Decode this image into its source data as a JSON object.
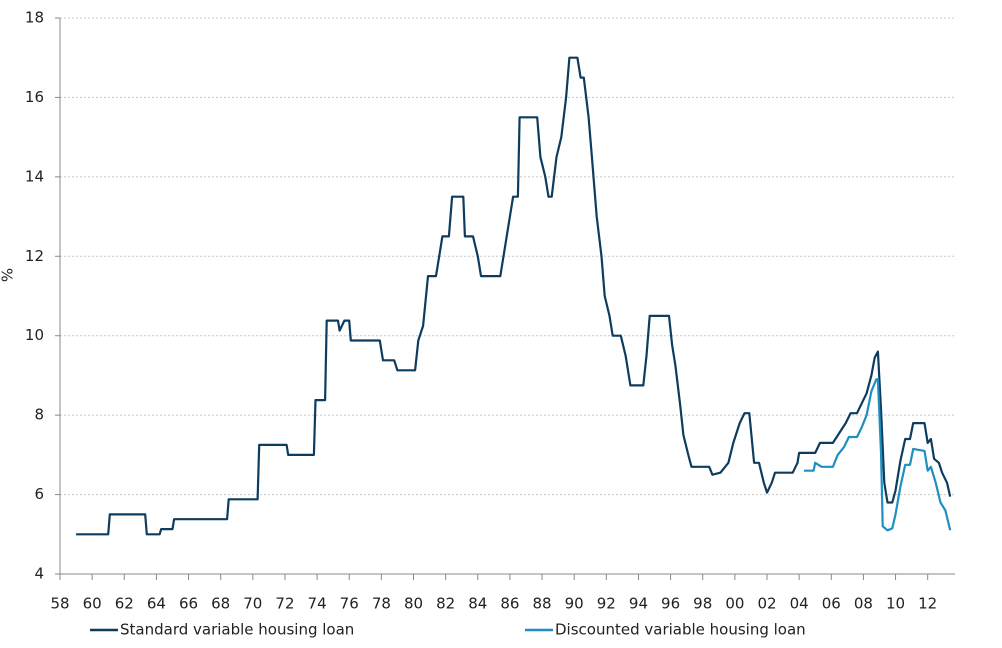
{
  "chart_data": {
    "type": "line",
    "y_label": "%",
    "grid": true,
    "ylim": [
      4,
      18
    ],
    "yticks": [
      4,
      6,
      8,
      10,
      12,
      14,
      16,
      18
    ],
    "xlim": [
      1958,
      2013.7
    ],
    "xticks": [
      {
        "value": 1958,
        "label": "58"
      },
      {
        "value": 1960,
        "label": "60"
      },
      {
        "value": 1962,
        "label": "62"
      },
      {
        "value": 1964,
        "label": "64"
      },
      {
        "value": 1966,
        "label": "66"
      },
      {
        "value": 1968,
        "label": "68"
      },
      {
        "value": 1970,
        "label": "70"
      },
      {
        "value": 1972,
        "label": "72"
      },
      {
        "value": 1974,
        "label": "74"
      },
      {
        "value": 1976,
        "label": "76"
      },
      {
        "value": 1978,
        "label": "78"
      },
      {
        "value": 1980,
        "label": "80"
      },
      {
        "value": 1982,
        "label": "82"
      },
      {
        "value": 1984,
        "label": "84"
      },
      {
        "value": 1986,
        "label": "86"
      },
      {
        "value": 1988,
        "label": "88"
      },
      {
        "value": 1990,
        "label": "90"
      },
      {
        "value": 1992,
        "label": "92"
      },
      {
        "value": 1994,
        "label": "94"
      },
      {
        "value": 1996,
        "label": "96"
      },
      {
        "value": 1998,
        "label": "98"
      },
      {
        "value": 2000,
        "label": "00"
      },
      {
        "value": 2002,
        "label": "02"
      },
      {
        "value": 2004,
        "label": "04"
      },
      {
        "value": 2006,
        "label": "06"
      },
      {
        "value": 2008,
        "label": "08"
      },
      {
        "value": 2010,
        "label": "10"
      },
      {
        "value": 2012,
        "label": "12"
      }
    ],
    "series": [
      {
        "name": "Standard variable housing loan",
        "color": "#0d3c5e",
        "x": [
          1959,
          1961,
          1961.1,
          1963.3,
          1963.4,
          1964.2,
          1964.3,
          1965,
          1965.1,
          1968.4,
          1968.5,
          1970.3,
          1970.4,
          1972.1,
          1972.2,
          1973.8,
          1973.9,
          1974.5,
          1974.6,
          1975.3,
          1975.4,
          1975.7,
          1976,
          1976.1,
          1977.9,
          1978.1,
          1978.8,
          1979,
          1980.1,
          1980.3,
          1980.6,
          1980.9,
          1981.4,
          1981.8,
          1982.2,
          1982.4,
          1983.1,
          1983.2,
          1983.7,
          1984,
          1984.2,
          1985.4,
          1985.6,
          1986,
          1986.2,
          1986.5,
          1986.6,
          1987.7,
          1987.9,
          1988.2,
          1988.4,
          1988.6,
          1988.9,
          1989.2,
          1989.5,
          1989.7,
          1990.2,
          1990.4,
          1990.6,
          1990.9,
          1991.1,
          1991.4,
          1991.7,
          1991.9,
          1992.2,
          1992.4,
          1992.9,
          1993.2,
          1993.5,
          1994.3,
          1994.5,
          1994.7,
          1995.9,
          1996.1,
          1996.3,
          1996.6,
          1996.8,
          1997.1,
          1997.3,
          1998.4,
          1998.6,
          1999.1,
          1999.6,
          1999.9,
          2000.3,
          2000.6,
          2000.9,
          2001.2,
          2001.5,
          2001.8,
          2002,
          2002.3,
          2002.5,
          2003.6,
          2003.9,
          2004,
          2005,
          2005.3,
          2006.1,
          2006.5,
          2006.9,
          2007.2,
          2007.6,
          2007.9,
          2008.2,
          2008.5,
          2008.7,
          2008.9,
          2009.1,
          2009.3,
          2009.5,
          2009.8,
          2010,
          2010.3,
          2010.6,
          2010.9,
          2011.1,
          2011.8,
          2012,
          2012.2,
          2012.4,
          2012.7,
          2012.9,
          2013.2,
          2013.4
        ],
        "values": [
          5,
          5,
          5.5,
          5.5,
          5,
          5,
          5.13,
          5.13,
          5.38,
          5.38,
          5.88,
          5.88,
          7.25,
          7.25,
          7,
          7,
          8.38,
          8.38,
          10.38,
          10.38,
          10.13,
          10.38,
          10.38,
          9.88,
          9.88,
          9.38,
          9.38,
          9.13,
          9.13,
          9.88,
          10.25,
          11.5,
          11.5,
          12.5,
          12.5,
          13.5,
          13.5,
          12.5,
          12.5,
          12,
          11.5,
          11.5,
          12,
          13,
          13.5,
          13.5,
          15.5,
          15.5,
          14.5,
          14,
          13.5,
          13.5,
          14.5,
          15,
          16,
          17,
          17,
          16.5,
          16.5,
          15.5,
          14.5,
          13,
          12,
          11,
          10.5,
          10,
          10,
          9.5,
          8.75,
          8.75,
          9.5,
          10.5,
          10.5,
          9.75,
          9.25,
          8.25,
          7.5,
          7,
          6.7,
          6.7,
          6.5,
          6.55,
          6.8,
          7.3,
          7.8,
          8.05,
          8.05,
          6.8,
          6.8,
          6.3,
          6.05,
          6.3,
          6.55,
          6.55,
          6.8,
          7.05,
          7.05,
          7.3,
          7.3,
          7.55,
          7.8,
          8.05,
          8.05,
          8.3,
          8.55,
          9,
          9.45,
          9.6,
          8.1,
          6.3,
          5.8,
          5.8,
          6.1,
          6.85,
          7.4,
          7.4,
          7.8,
          7.8,
          7.3,
          7.4,
          6.9,
          6.8,
          6.55,
          6.3,
          5.95
        ]
      },
      {
        "name": "Discounted variable housing loan",
        "color": "#1f8fc0",
        "x": [
          2004.3,
          2004.9,
          2005,
          2005.4,
          2006.1,
          2006.4,
          2006.8,
          2007.1,
          2007.6,
          2007.9,
          2008.2,
          2008.5,
          2008.8,
          2008.9,
          2009.1,
          2009.2,
          2009.5,
          2009.8,
          2010,
          2010.3,
          2010.6,
          2010.9,
          2011.1,
          2011.8,
          2012,
          2012.2,
          2012.5,
          2012.8,
          2013.1,
          2013.4
        ],
        "values": [
          6.6,
          6.6,
          6.8,
          6.7,
          6.7,
          7,
          7.2,
          7.45,
          7.45,
          7.7,
          8,
          8.6,
          8.9,
          8.9,
          7,
          5.2,
          5.1,
          5.15,
          5.5,
          6.2,
          6.75,
          6.75,
          7.15,
          7.1,
          6.6,
          6.7,
          6.3,
          5.8,
          5.6,
          5.1
        ]
      }
    ]
  }
}
